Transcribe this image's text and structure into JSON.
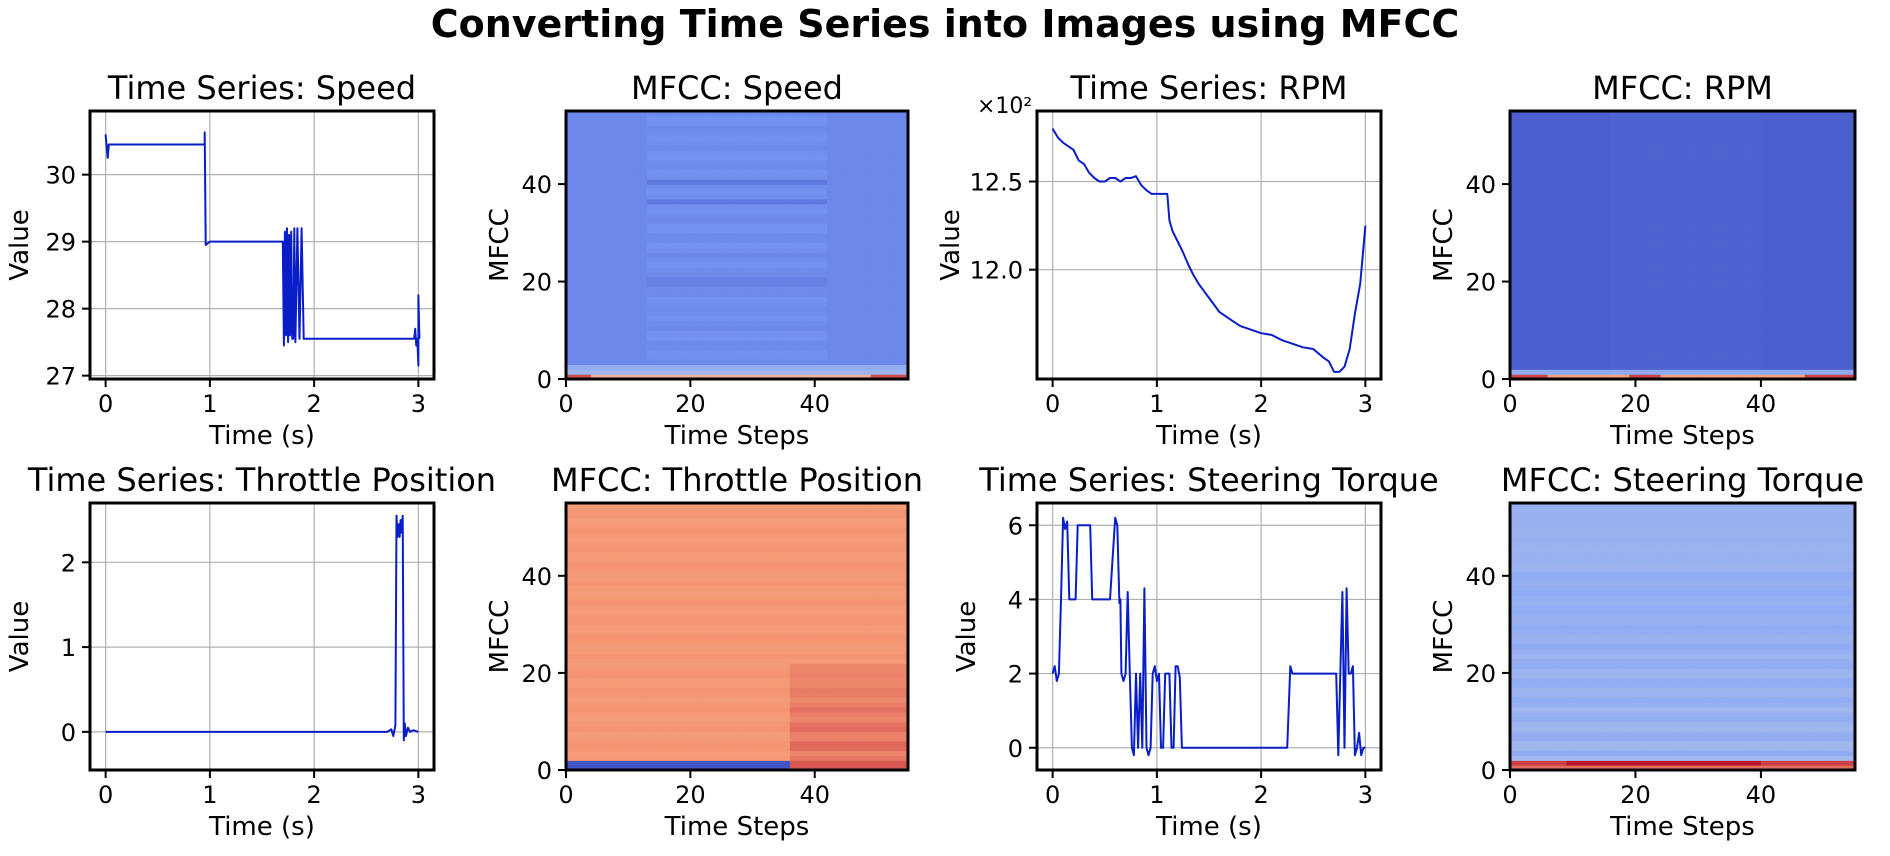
{
  "figure": {
    "title": "Converting Time Series into Images using MFCC"
  },
  "colors": {
    "line": "#0a1ec8",
    "grid": "#b0b0b0",
    "axis": "#000000"
  },
  "chart_data": [
    {
      "id": "ts-speed",
      "type": "line",
      "title": "Time Series: Speed",
      "xlabel": "Time (s)",
      "ylabel": "Value",
      "xlim": [
        -0.15,
        3.15
      ],
      "ylim": [
        26.95,
        30.95
      ],
      "xticks": [
        0,
        1,
        2,
        3
      ],
      "yticks": [
        27,
        28,
        29,
        30
      ],
      "series": [
        {
          "x": [
            0,
            0.02,
            0.03,
            0.95,
            0.95,
            0.96,
            1.0,
            1.7,
            1.71,
            1.72,
            1.73,
            1.74,
            1.75,
            1.76,
            1.77,
            1.78,
            1.79,
            1.8,
            1.81,
            1.82,
            1.84,
            1.86,
            1.88,
            1.9,
            1.92,
            2.9,
            2.96,
            2.97,
            2.98,
            2.99,
            3.0,
            3.0,
            3.01
          ],
          "y": [
            30.6,
            30.25,
            30.45,
            30.45,
            30.63,
            28.95,
            29.0,
            29.0,
            27.45,
            29.15,
            27.6,
            29.2,
            27.5,
            29.1,
            27.6,
            29.15,
            27.55,
            27.55,
            29.2,
            27.5,
            29.2,
            27.55,
            29.2,
            27.55,
            27.55,
            27.55,
            27.55,
            27.7,
            27.45,
            27.55,
            27.15,
            28.2,
            27.55
          ]
        }
      ]
    },
    {
      "id": "mfcc-speed",
      "type": "heatmap",
      "title": "MFCC: Speed",
      "xlabel": "Time Steps",
      "ylabel": "MFCC",
      "xlim": [
        0,
        55
      ],
      "ylim": [
        0,
        55
      ],
      "xticks": [
        0,
        20,
        40
      ],
      "yticks": [
        0,
        20,
        40
      ],
      "colormap": "coolwarm",
      "profile": "speed"
    },
    {
      "id": "ts-rpm",
      "type": "line",
      "title": "Time Series: RPM",
      "xlabel": "Time (s)",
      "ylabel": "Value",
      "multiplier": "×10²",
      "xlim": [
        -0.15,
        3.15
      ],
      "ylim": [
        1138,
        1290
      ],
      "xticks": [
        0,
        1,
        2,
        3
      ],
      "yticks": [
        1200,
        1250
      ],
      "ytick_labels": [
        "12.0",
        "12.5"
      ],
      "series": [
        {
          "x": [
            0,
            0.05,
            0.1,
            0.15,
            0.2,
            0.25,
            0.3,
            0.35,
            0.4,
            0.45,
            0.5,
            0.55,
            0.6,
            0.65,
            0.7,
            0.75,
            0.8,
            0.85,
            0.9,
            0.95,
            1.0,
            1.05,
            1.1,
            1.12,
            1.15,
            1.2,
            1.25,
            1.3,
            1.35,
            1.4,
            1.45,
            1.5,
            1.55,
            1.6,
            1.7,
            1.8,
            1.9,
            2.0,
            2.1,
            2.2,
            2.3,
            2.4,
            2.5,
            2.6,
            2.65,
            2.7,
            2.75,
            2.8,
            2.85,
            2.9,
            2.95,
            3.0
          ],
          "y": [
            1280,
            1275,
            1272,
            1270,
            1268,
            1262,
            1260,
            1255,
            1252,
            1250,
            1250,
            1252,
            1252,
            1250,
            1252,
            1252,
            1253,
            1248,
            1245,
            1243,
            1243,
            1243,
            1243,
            1228,
            1222,
            1216,
            1210,
            1203,
            1197,
            1192,
            1188,
            1184,
            1180,
            1176,
            1172,
            1168,
            1166,
            1164,
            1163,
            1160,
            1158,
            1156,
            1155,
            1150,
            1148,
            1142,
            1142,
            1145,
            1155,
            1175,
            1192,
            1225
          ]
        }
      ]
    },
    {
      "id": "mfcc-rpm",
      "type": "heatmap",
      "title": "MFCC: RPM",
      "xlabel": "Time Steps",
      "ylabel": "MFCC",
      "xlim": [
        0,
        55
      ],
      "ylim": [
        0,
        55
      ],
      "xticks": [
        0,
        20,
        40
      ],
      "yticks": [
        0,
        20,
        40
      ],
      "colormap": "coolwarm",
      "profile": "rpm"
    },
    {
      "id": "ts-throttle",
      "type": "line",
      "title": "Time Series: Throttle Position",
      "xlabel": "Time (s)",
      "ylabel": "Value",
      "xlim": [
        -0.15,
        3.15
      ],
      "ylim": [
        -0.45,
        2.7
      ],
      "xticks": [
        0,
        1,
        2,
        3
      ],
      "yticks": [
        0,
        1,
        2
      ],
      "series": [
        {
          "x": [
            0,
            2.7,
            2.74,
            2.76,
            2.78,
            2.79,
            2.8,
            2.81,
            2.82,
            2.83,
            2.84,
            2.85,
            2.86,
            2.87,
            2.88,
            2.9,
            2.92,
            2.95,
            3.0
          ],
          "y": [
            0,
            0,
            0.03,
            -0.05,
            0.08,
            2.55,
            2.3,
            2.45,
            2.3,
            2.5,
            2.35,
            2.55,
            -0.1,
            0.1,
            -0.05,
            0.05,
            0,
            0.02,
            0
          ]
        }
      ]
    },
    {
      "id": "mfcc-throttle",
      "type": "heatmap",
      "title": "MFCC: Throttle Position",
      "xlabel": "Time Steps",
      "ylabel": "MFCC",
      "xlim": [
        0,
        55
      ],
      "ylim": [
        0,
        55
      ],
      "xticks": [
        0,
        20,
        40
      ],
      "yticks": [
        0,
        20,
        40
      ],
      "colormap": "coolwarm",
      "profile": "throttle"
    },
    {
      "id": "ts-steering",
      "type": "line",
      "title": "Time Series: Steering Torque",
      "xlabel": "Time (s)",
      "ylabel": "Value",
      "xlim": [
        -0.15,
        3.15
      ],
      "ylim": [
        -0.6,
        6.6
      ],
      "xticks": [
        0,
        1,
        2,
        3
      ],
      "yticks": [
        0,
        2,
        4,
        6
      ],
      "series": [
        {
          "x": [
            0,
            0.02,
            0.04,
            0.06,
            0.08,
            0.1,
            0.12,
            0.14,
            0.16,
            0.18,
            0.2,
            0.22,
            0.24,
            0.25,
            0.3,
            0.35,
            0.36,
            0.38,
            0.4,
            0.45,
            0.5,
            0.55,
            0.6,
            0.62,
            0.64,
            0.65,
            0.66,
            0.68,
            0.7,
            0.72,
            0.74,
            0.76,
            0.78,
            0.8,
            0.82,
            0.84,
            0.86,
            0.88,
            0.9,
            0.92,
            0.94,
            0.96,
            0.98,
            1.0,
            1.02,
            1.04,
            1.06,
            1.08,
            1.1,
            1.12,
            1.14,
            1.16,
            1.18,
            1.2,
            1.22,
            1.24,
            1.26,
            1.28,
            1.3,
            1.5,
            2.0,
            2.25,
            2.28,
            2.3,
            2.5,
            2.7,
            2.72,
            2.74,
            2.76,
            2.78,
            2.8,
            2.82,
            2.84,
            2.86,
            2.88,
            2.9,
            2.92,
            2.94,
            2.96,
            2.98,
            3.0
          ],
          "y": [
            2,
            2.2,
            1.8,
            2,
            4,
            6.2,
            5.9,
            6.1,
            4,
            4,
            4,
            4,
            6,
            6,
            6,
            6,
            6,
            4,
            4,
            4,
            4,
            4,
            6.2,
            6,
            3.9,
            4,
            2,
            1.8,
            2,
            4.2,
            2,
            0,
            -0.2,
            2,
            0,
            2,
            0,
            4.3,
            0,
            -0.2,
            0,
            2,
            2.2,
            1.8,
            2,
            0,
            0,
            2,
            2,
            2,
            0,
            0,
            2.2,
            2.2,
            1.9,
            0,
            0,
            0,
            0,
            0,
            0,
            0,
            2.2,
            2,
            2,
            2,
            2,
            -0.2,
            2,
            4.2,
            0,
            4.3,
            2,
            2,
            2.2,
            -0.2,
            0,
            0.4,
            -0.2,
            0,
            0
          ]
        }
      ]
    },
    {
      "id": "mfcc-steering",
      "type": "heatmap",
      "title": "MFCC: Steering Torque",
      "xlabel": "Time Steps",
      "ylabel": "MFCC",
      "xlim": [
        0,
        55
      ],
      "ylim": [
        0,
        55
      ],
      "xticks": [
        0,
        20,
        40
      ],
      "yticks": [
        0,
        20,
        40
      ],
      "colormap": "coolwarm",
      "profile": "steering"
    }
  ]
}
